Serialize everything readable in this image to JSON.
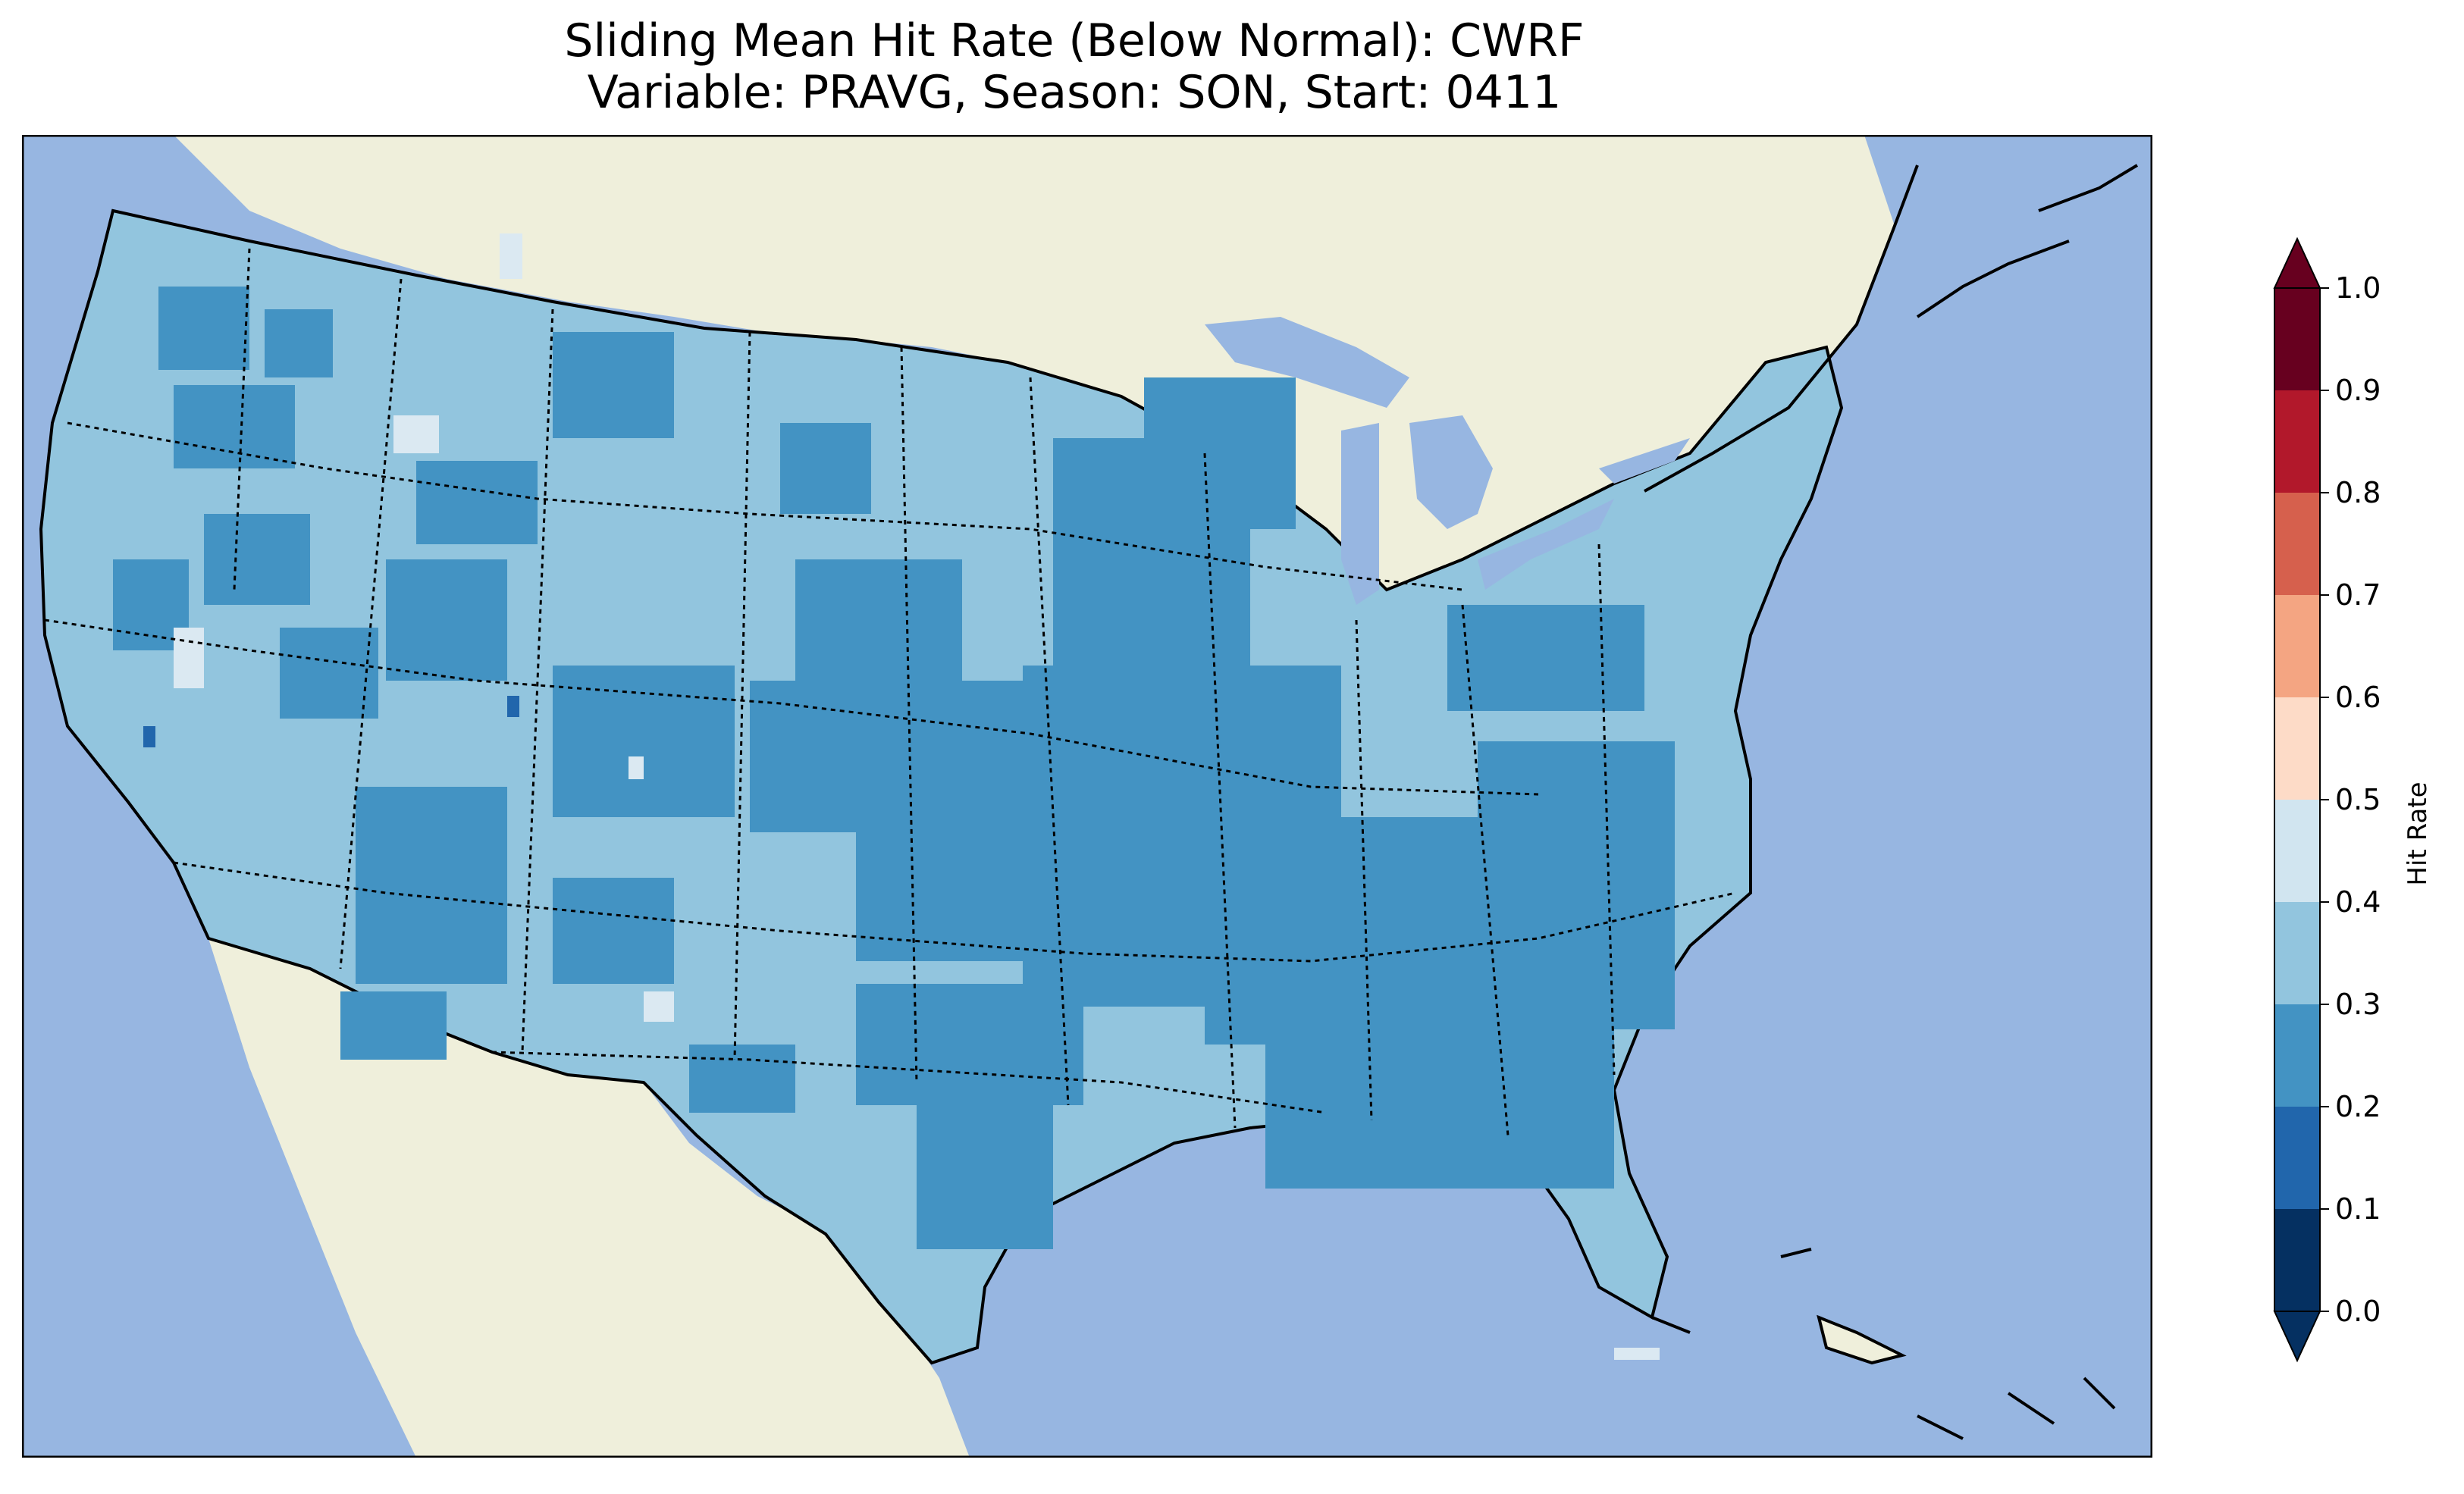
{
  "title": {
    "line1": "Sliding Mean Hit Rate (Below Normal): CWRF",
    "line2": "Variable: PRAVG, Season: SON, Start: 0411"
  },
  "map": {
    "ocean_color": "#97b6e1",
    "land_color": "#efefdb",
    "border_color": "#000000",
    "cell_palette": {
      "0.2-0.3": "#4393c3",
      "0.3-0.4": "#92c5de",
      "0.4-0.5": "#dbe9f2",
      "0.1-0.2": "#2166ac"
    }
  },
  "colorbar": {
    "label": "Hit Rate",
    "ticks": [
      "0.0",
      "0.1",
      "0.2",
      "0.3",
      "0.4",
      "0.5",
      "0.6",
      "0.7",
      "0.8",
      "0.9",
      "1.0"
    ],
    "colors": [
      "#053061",
      "#2166ac",
      "#4393c3",
      "#92c5de",
      "#d1e5f0",
      "#fddbc7",
      "#f4a582",
      "#d6604d",
      "#b2182b",
      "#67001f"
    ],
    "extend": "both"
  }
}
